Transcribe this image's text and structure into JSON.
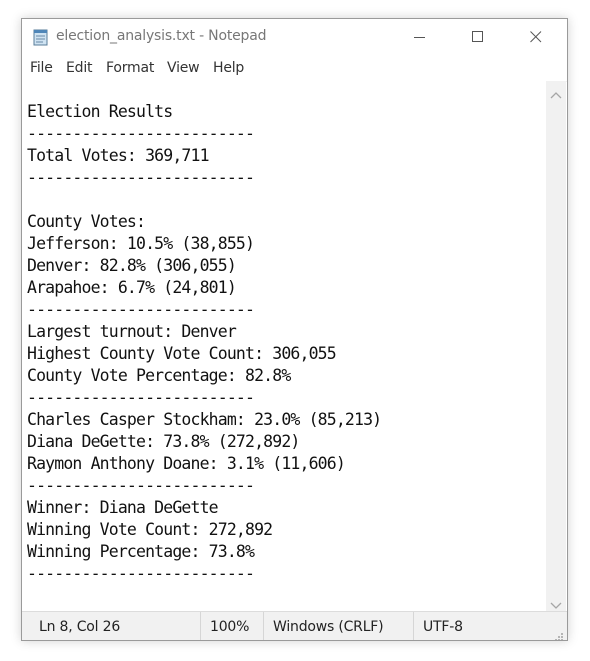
{
  "window": {
    "title": "election_analysis.txt - Notepad",
    "app_icon": "notepad-icon",
    "controls": [
      "minimize-icon",
      "maximize-icon",
      "close-icon"
    ]
  },
  "menu": [
    "File",
    "Edit",
    "Format",
    "View",
    "Help"
  ],
  "editor": {
    "lines": [
      "Election Results",
      "-------------------------",
      "Total Votes: 369,711",
      "-------------------------",
      "",
      "County Votes:",
      "Jefferson: 10.5% (38,855)",
      "Denver: 82.8% (306,055)",
      "Arapahoe: 6.7% (24,801)",
      "-------------------------",
      "Largest turnout: Denver",
      "Highest County Vote Count: 306,055",
      "County Vote Percentage: 82.8%",
      "-------------------------",
      "Charles Casper Stockham: 23.0% (85,213)",
      "Diana DeGette: 73.8% (272,892)",
      "Raymon Anthony Doane: 3.1% (11,606)",
      "-------------------------",
      "Winner: Diana DeGette",
      "Winning Vote Count: 272,892",
      "Winning Percentage: 73.8%",
      "-------------------------"
    ]
  },
  "status": {
    "position": "Ln 8, Col 26",
    "zoom": "100%",
    "line_ending": "Windows (CRLF)",
    "encoding": "UTF-8"
  }
}
